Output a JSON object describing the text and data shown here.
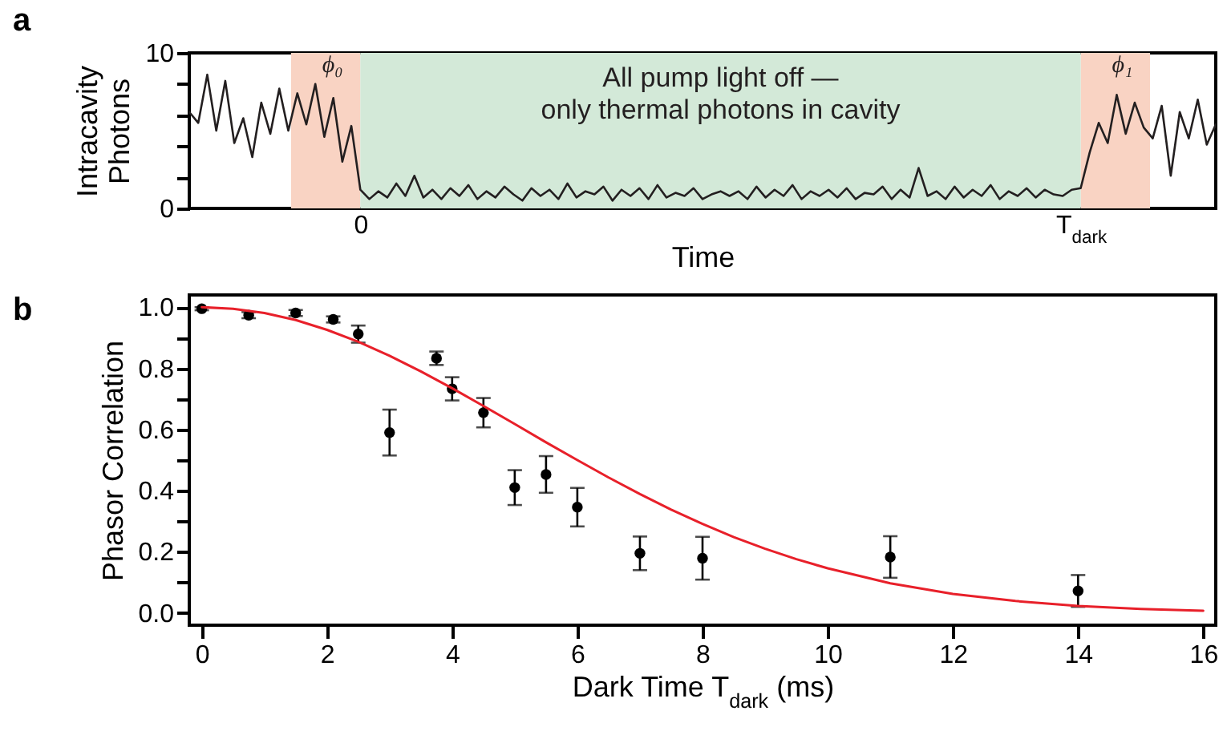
{
  "chart_data": [
    {
      "type": "line",
      "title": "a",
      "xlabel": "Time",
      "ylabel": "Intracavity\nPhotons",
      "categories": [
        null,
        null,
        null,
        null,
        null,
        null,
        null,
        null,
        null,
        null,
        null,
        null,
        null,
        null,
        null,
        null,
        null,
        null,
        null,
        "0",
        null,
        null,
        null,
        null,
        null,
        null,
        null,
        null,
        null,
        null,
        null,
        null,
        null,
        null,
        null,
        null,
        null,
        null,
        null,
        null,
        null,
        null,
        null,
        null,
        null,
        null,
        null,
        null,
        null,
        null,
        null,
        null,
        null,
        null,
        null,
        null,
        null,
        null,
        null,
        null,
        null,
        null,
        null,
        null,
        null,
        null,
        null,
        null,
        null,
        null,
        null,
        null,
        null,
        null,
        null,
        null,
        null,
        null,
        null,
        null,
        null,
        null,
        null,
        null,
        null,
        null,
        null,
        null,
        null,
        null,
        null,
        null,
        null,
        null,
        null,
        null,
        null,
        null,
        null,
        "T$_{dark}$",
        null,
        null,
        null,
        null,
        null,
        null,
        null,
        null,
        null,
        null,
        null,
        null,
        null,
        null,
        null
      ],
      "ylim": [
        0,
        10
      ],
      "yticks": [
        0,
        {
          "value": 2,
          "label": null
        },
        {
          "value": 4,
          "label": null
        },
        {
          "value": 6,
          "label": null
        },
        {
          "value": 8,
          "label": null
        },
        10
      ],
      "bands": [
        {
          "axis": "x",
          "from": "0",
          "to": "T$_{dark}$",
          "label": "All pump light off —\nonly thermal photons in cavity",
          "color": "#d3e9d8"
        }
      ],
      "annotations": [
        "ϕ₀",
        "ϕ₁"
      ],
      "series": [
        {
          "color": "#231f20",
          "values": [
            6.2,
            5.5,
            8.6,
            5,
            8.2,
            4.2,
            5.8,
            3.3,
            6.8,
            4.8,
            7.7,
            5,
            7.4,
            5.4,
            8,
            4.6,
            7.1,
            3,
            5.3,
            1.2,
            0.6,
            1.1,
            0.7,
            1.6,
            0.8,
            2.1,
            0.7,
            1.2,
            0.6,
            1.3,
            0.8,
            1.5,
            0.6,
            1.1,
            0.7,
            1.4,
            0.9,
            0.5,
            1.3,
            0.8,
            1.2,
            0.6,
            1.6,
            0.7,
            1.1,
            0.9,
            1.4,
            0.5,
            1.2,
            0.8,
            1.3,
            0.6,
            1.5,
            0.7,
            1.0,
            0.8,
            1.3,
            0.6,
            0.9,
            1.1,
            0.8,
            1.1,
            0.6,
            1.4,
            0.7,
            1.2,
            0.8,
            1.5,
            0.6,
            1.1,
            0.8,
            1.2,
            0.7,
            1.3,
            0.6,
            1.0,
            0.9,
            1.4,
            0.6,
            1.2,
            0.7,
            2.6,
            0.8,
            1.1,
            0.6,
            1.4,
            0.7,
            1.2,
            0.8,
            1.5,
            0.6,
            1.1,
            0.8,
            1.3,
            0.7,
            1.2,
            0.9,
            0.8,
            1.2,
            1.3,
            3.6,
            5.5,
            4.2,
            7.3,
            4.8,
            6.8,
            5.2,
            4.5,
            6.6,
            2.1,
            6.2,
            4.5,
            7,
            4.1,
            5.4
          ]
        }
      ]
    },
    {
      "type": "scatter",
      "title": "b",
      "xlabel": "Dark Time T$_{dark}$ (ms)",
      "ylabel": "Phasor Correlation",
      "xlim": [
        -0.2,
        16.2
      ],
      "xticks": [
        0,
        2,
        4,
        6,
        8,
        10,
        12,
        14,
        16
      ],
      "ylim": [
        -0.04,
        1.04
      ],
      "yticks": [
        {
          "value": 0,
          "label": "0.0"
        },
        {
          "value": 0.1,
          "label": null
        },
        {
          "value": 0.2,
          "label": "0.2"
        },
        {
          "value": 0.3,
          "label": null
        },
        {
          "value": 0.4,
          "label": "0.4"
        },
        {
          "value": 0.5,
          "label": null
        },
        {
          "value": 0.6,
          "label": "0.6"
        },
        {
          "value": 0.7,
          "label": null
        },
        {
          "value": 0.8,
          "label": "0.8"
        },
        {
          "value": 0.9,
          "label": null
        },
        {
          "value": 1,
          "label": "1.0"
        }
      ],
      "series": [
        {
          "color": "#000000",
          "marker": "circle",
          "x": [
            0,
            0.75,
            1.5,
            2.1,
            2.5,
            3,
            3.75,
            4,
            4.5,
            5,
            5.5,
            6,
            7,
            8,
            11,
            14
          ],
          "values": [
            0.995,
            0.974,
            0.981,
            0.96,
            0.912,
            0.59,
            0.833,
            0.733,
            0.655,
            0.41,
            0.453,
            0.346,
            0.195,
            0.179,
            0.183,
            0.072
          ],
          "errors": [
            0.005,
            0.01,
            0.01,
            0.01,
            0.028,
            0.075,
            0.022,
            0.038,
            0.048,
            0.057,
            0.06,
            0.063,
            0.055,
            0.07,
            0.068,
            0.052
          ]
        },
        {
          "type": "line",
          "color": "#e8202a",
          "x": [
            0,
            0.5,
            1,
            1.5,
            2,
            2.5,
            3,
            3.5,
            4,
            4.5,
            5,
            5.5,
            6,
            6.5,
            7,
            7.5,
            8,
            8.5,
            9,
            9.5,
            10,
            11,
            12,
            13,
            14,
            15,
            16
          ],
          "values": [
            1.0,
            0.995,
            0.981,
            0.958,
            0.926,
            0.887,
            0.841,
            0.79,
            0.735,
            0.677,
            0.618,
            0.558,
            0.5,
            0.443,
            0.389,
            0.338,
            0.291,
            0.248,
            0.21,
            0.176,
            0.146,
            0.097,
            0.062,
            0.039,
            0.023,
            0.013,
            0.007
          ]
        }
      ]
    }
  ]
}
